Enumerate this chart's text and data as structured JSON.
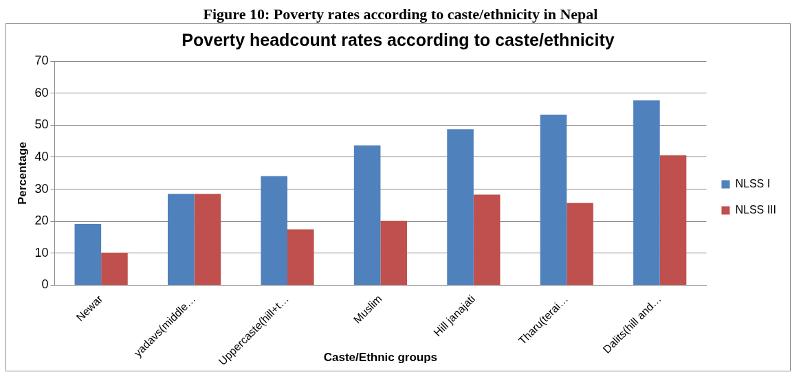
{
  "chart_data": {
    "type": "bar",
    "title": "Poverty headcount rates according to caste/ethnicity",
    "xlabel": "Caste/Ethnic groups",
    "ylabel": "Percentage",
    "annotations": [
      "Figure 10: Poverty rates according to caste/ethnicity in Nepal"
    ],
    "categories": [
      "Newar",
      "yadavs(middle…",
      "Uppercaste(hill+t…",
      "Muslim",
      "Hill janajati",
      "Tharu(terai…",
      "Dalits(hill and…"
    ],
    "series": [
      {
        "name": "NLSS I",
        "color": "#4f81bd",
        "values": [
          19.2,
          28.5,
          34.1,
          43.7,
          48.7,
          53.3,
          57.7
        ]
      },
      {
        "name": "NLSS III",
        "color": "#c0504d",
        "values": [
          10.2,
          28.5,
          17.4,
          20.1,
          28.3,
          25.7,
          40.6
        ]
      }
    ],
    "ylim": [
      0,
      70
    ],
    "yticks": [
      0,
      10,
      20,
      30,
      40,
      50,
      60,
      70
    ],
    "grid": "y",
    "legend": "right"
  }
}
